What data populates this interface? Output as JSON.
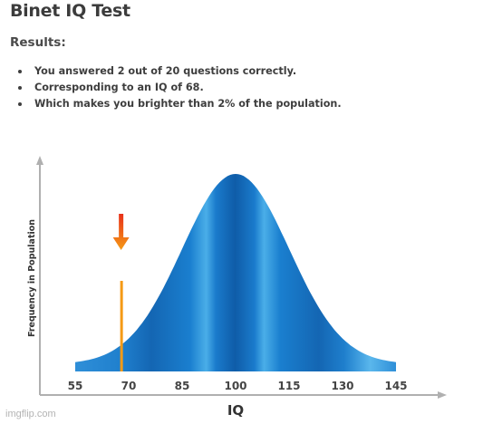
{
  "page": {
    "title": "Binet IQ Test",
    "results_heading": "Results:",
    "results": [
      "You answered 2 out of 20 questions correctly.",
      "Corresponding to an IQ of 68.",
      "Which makes you brighter than 2% of the population."
    ]
  },
  "chart_data": {
    "type": "area",
    "xlabel": "IQ",
    "ylabel": "Frequency in Population",
    "x_ticks": [
      55,
      70,
      85,
      100,
      115,
      130,
      145
    ],
    "xlim": [
      55,
      145
    ],
    "distribution": {
      "mean": 100,
      "sd": 15
    },
    "marker": {
      "value": 68
    },
    "colors": {
      "curve_dark": "#0f5ca8",
      "curve_mid": "#1b83d3",
      "curve_light": "#5ab7ec",
      "marker_orange": "#f59a16",
      "marker_red": "#e8311a",
      "axis": "#b0b0b0"
    }
  },
  "footer": {
    "watermark": "imgflip.com"
  }
}
